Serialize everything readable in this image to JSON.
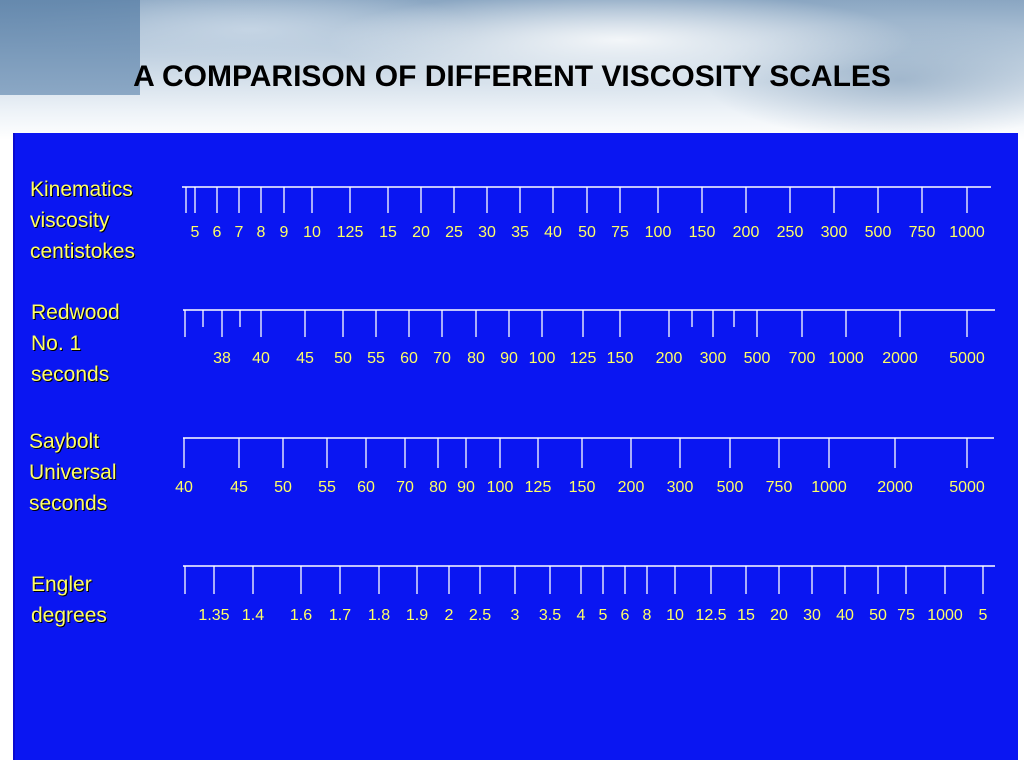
{
  "title": "A COMPARISON OF DIFFERENT VISCOSITY SCALES",
  "colors": {
    "panel": "#0a16f2",
    "label_text": "#ffff66",
    "tick_lines": "#ffffff",
    "title_text": "#000000"
  },
  "scales": [
    {
      "id": "kinematic",
      "label_lines": [
        "Kinematics",
        "viscosity",
        "centistokes"
      ],
      "ticks": [
        "5",
        "6",
        "7",
        "8",
        "9",
        "10",
        "125",
        "15",
        "20",
        "25",
        "30",
        "35",
        "40",
        "50",
        "75",
        "100",
        "150",
        "200",
        "250",
        "300",
        "500",
        "750",
        "1000"
      ]
    },
    {
      "id": "redwood",
      "label_lines": [
        "Redwood",
        "No. 1",
        "seconds"
      ],
      "ticks": [
        "38",
        "40",
        "45",
        "50",
        "55",
        "60",
        "70",
        "80",
        "90",
        "100",
        "125",
        "150",
        "200",
        "300",
        "500",
        "700",
        "1000",
        "2000",
        "5000"
      ]
    },
    {
      "id": "saybolt",
      "label_lines": [
        "Saybolt",
        "Universal",
        "seconds"
      ],
      "ticks": [
        "40",
        "45",
        "50",
        "55",
        "60",
        "70",
        "80",
        "90",
        "100",
        "125",
        "150",
        "200",
        "300",
        "500",
        "750",
        "1000",
        "2000",
        "5000"
      ]
    },
    {
      "id": "engler",
      "label_lines": [
        "Engler",
        "degrees"
      ],
      "ticks": [
        "1.35",
        "1.4",
        "1.6",
        "1.7",
        "1.8",
        "1.9",
        "2",
        "2.5",
        "3",
        "3.5",
        "4",
        "5",
        "6",
        "8",
        "10",
        "12.5",
        "15",
        "20",
        "30",
        "40",
        "50",
        "75",
        "1000",
        "5"
      ]
    }
  ]
}
